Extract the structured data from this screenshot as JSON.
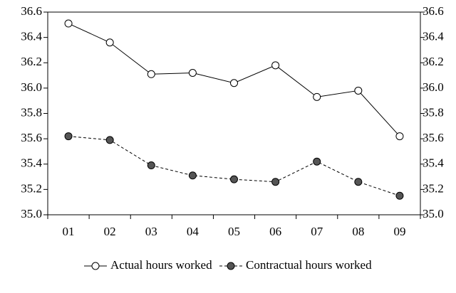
{
  "chart_data": {
    "type": "line",
    "categories": [
      "01",
      "02",
      "03",
      "04",
      "05",
      "06",
      "07",
      "08",
      "09"
    ],
    "series": [
      {
        "name": "Actual hours worked",
        "color": "#000000",
        "marker_fill": "#ffffff",
        "dash": false,
        "values": [
          36.51,
          36.36,
          36.11,
          36.12,
          36.04,
          36.18,
          35.93,
          35.98,
          35.62
        ]
      },
      {
        "name": "Contractual hours worked",
        "color": "#000000",
        "marker_fill": "#555555",
        "dash": true,
        "values": [
          35.62,
          35.59,
          35.39,
          35.31,
          35.28,
          35.26,
          35.42,
          35.26,
          35.15
        ]
      }
    ],
    "ylim": [
      35.0,
      36.6
    ],
    "yticks": [
      {
        "value": 35.0,
        "label": "35.0"
      },
      35.2,
      35.4,
      35.6,
      35.8,
      {
        "value": 36.0,
        "label": "36.0"
      },
      36.2,
      36.4,
      36.6
    ],
    "y2lim": [
      35.0,
      36.6
    ],
    "y2ticks": [
      {
        "value": 35.0,
        "label": "35.0"
      },
      35.2,
      35.4,
      35.6,
      35.8,
      {
        "value": 36.0,
        "label": "36.0"
      },
      36.2,
      36.4,
      36.6
    ],
    "legend": "bottom"
  }
}
